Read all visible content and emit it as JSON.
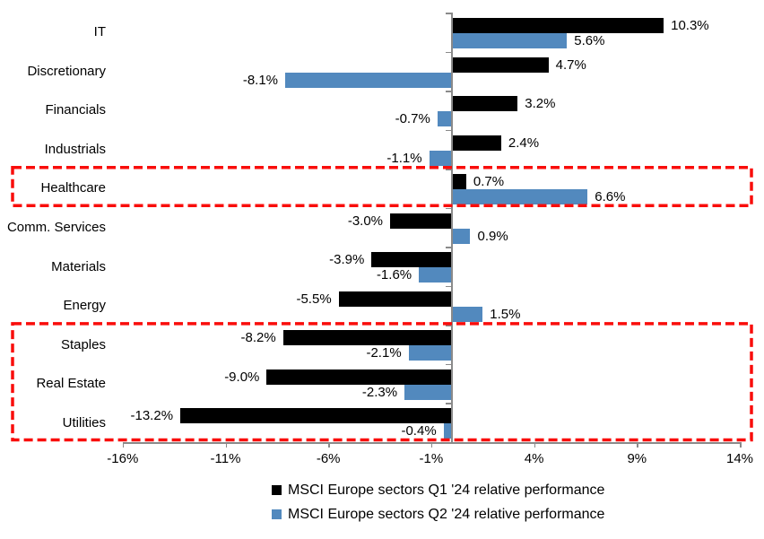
{
  "chart_data": {
    "type": "bar",
    "orientation": "horizontal",
    "title": "",
    "categories": [
      "IT",
      "Discretionary",
      "Financials",
      "Industrials",
      "Healthcare",
      "Comm. Services",
      "Materials",
      "Energy",
      "Staples",
      "Real Estate",
      "Utilities"
    ],
    "series": [
      {
        "name": "MSCI Europe sectors Q1 '24 relative performance",
        "color": "#000000",
        "values": [
          10.3,
          4.7,
          3.2,
          2.4,
          0.7,
          -3.0,
          -3.9,
          -5.5,
          -8.2,
          -9.0,
          -13.2
        ],
        "value_labels": [
          "10.3%",
          "4.7%",
          "3.2%",
          "2.4%",
          "0.7%",
          "-3.0%",
          "-3.9%",
          "-5.5%",
          "-8.2%",
          "-9.0%",
          "-13.2%"
        ]
      },
      {
        "name": "MSCI Europe sectors Q2 '24 relative performance",
        "color": "#5289BE",
        "values": [
          5.6,
          -8.1,
          -0.7,
          -1.1,
          6.6,
          0.9,
          -1.6,
          1.5,
          -2.1,
          -2.3,
          -0.4
        ],
        "value_labels": [
          "5.6%",
          "-8.1%",
          "-0.7%",
          "-1.1%",
          "6.6%",
          "0.9%",
          "-1.6%",
          "1.5%",
          "-2.1%",
          "-2.3%",
          "-0.4%"
        ]
      }
    ],
    "xlim": [
      -16,
      14
    ],
    "x_ticks": [
      {
        "value": -16,
        "label": "-16%"
      },
      {
        "value": -11,
        "label": "-11%"
      },
      {
        "value": -6,
        "label": "-6%"
      },
      {
        "value": -1,
        "label": "-1%"
      },
      {
        "value": 4,
        "label": "4%"
      },
      {
        "value": 9,
        "label": "9%"
      },
      {
        "value": 14,
        "label": "14%"
      }
    ],
    "grid": false,
    "legend_position": "bottom",
    "axis_color": "#8a8a8a",
    "background_color": "#FFFFFF",
    "annotations": {
      "highlight_boxes": [
        {
          "categories": [
            "Healthcare"
          ],
          "color": "#F90D0B",
          "style": "dashed"
        },
        {
          "categories": [
            "Staples",
            "Real Estate",
            "Utilities"
          ],
          "color": "#F90D0B",
          "style": "dashed"
        }
      ]
    }
  }
}
